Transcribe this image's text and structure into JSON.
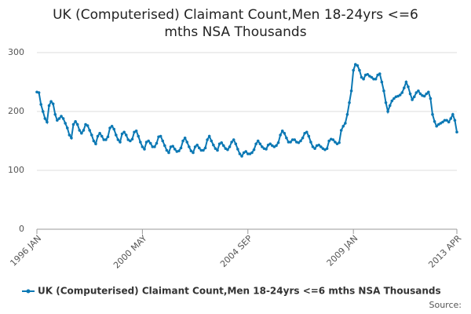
{
  "chart_data": {
    "type": "line",
    "title": "UK (Computerised) Claimant Count,Men 18-24yrs <=6 mths NSA Thousands",
    "source_label": "Source:",
    "categories": [
      "1996 JAN",
      null,
      null,
      null,
      null,
      null,
      null,
      null,
      null,
      null,
      null,
      null,
      null,
      null,
      null,
      null,
      null,
      null,
      null,
      null,
      null,
      null,
      null,
      null,
      null,
      null,
      null,
      null,
      null,
      null,
      null,
      null,
      null,
      null,
      null,
      null,
      null,
      null,
      null,
      null,
      null,
      null,
      null,
      null,
      null,
      null,
      null,
      null,
      null,
      null,
      null,
      null,
      "2000 MAY",
      null,
      null,
      null,
      null,
      null,
      null,
      null,
      null,
      null,
      null,
      null,
      null,
      null,
      null,
      null,
      null,
      null,
      null,
      null,
      null,
      null,
      null,
      null,
      null,
      null,
      null,
      null,
      null,
      null,
      null,
      null,
      null,
      null,
      null,
      null,
      null,
      null,
      null,
      null,
      null,
      null,
      null,
      null,
      null,
      null,
      null,
      null,
      null,
      null,
      null,
      null,
      "2004 SEP",
      null,
      null,
      null,
      null,
      null,
      null,
      null,
      null,
      null,
      null,
      null,
      null,
      null,
      null,
      null,
      null,
      null,
      null,
      null,
      null,
      null,
      null,
      null,
      null,
      null,
      null,
      null,
      null,
      null,
      null,
      null,
      null,
      null,
      null,
      null,
      null,
      null,
      null,
      null,
      null,
      null,
      null,
      null,
      null,
      null,
      null,
      null,
      null,
      null,
      null,
      null,
      "2009 JAN",
      null,
      null,
      null,
      null,
      null,
      null,
      null,
      null,
      null,
      null,
      null,
      null,
      null,
      null,
      null,
      null,
      null,
      null,
      null,
      null,
      null,
      null,
      null,
      null,
      null,
      null,
      null,
      null,
      null,
      null,
      null,
      null,
      null,
      null,
      null,
      null,
      null,
      null,
      null,
      null,
      null,
      null,
      null,
      null,
      null,
      null,
      null,
      null,
      null,
      null,
      "2013 APR"
    ],
    "series": [
      {
        "name": "UK (Computerised) Claimant Count,Men 18-24yrs <=6 mths NSA Thousands",
        "color": "#0b78b4",
        "values": [
          233,
          232,
          212,
          200,
          188,
          182,
          210,
          217,
          213,
          195,
          185,
          188,
          192,
          188,
          180,
          172,
          160,
          155,
          178,
          183,
          178,
          168,
          163,
          168,
          178,
          176,
          168,
          160,
          150,
          145,
          158,
          163,
          158,
          152,
          152,
          157,
          172,
          175,
          170,
          160,
          152,
          148,
          162,
          165,
          160,
          152,
          150,
          153,
          165,
          167,
          158,
          148,
          140,
          136,
          148,
          150,
          146,
          140,
          140,
          146,
          157,
          158,
          150,
          142,
          134,
          130,
          140,
          141,
          136,
          132,
          133,
          138,
          150,
          155,
          148,
          140,
          133,
          130,
          140,
          143,
          138,
          134,
          134,
          138,
          152,
          158,
          150,
          143,
          137,
          134,
          145,
          147,
          142,
          137,
          135,
          140,
          148,
          152,
          145,
          136,
          128,
          124,
          130,
          132,
          128,
          128,
          130,
          135,
          145,
          150,
          145,
          140,
          137,
          136,
          143,
          145,
          142,
          140,
          142,
          147,
          160,
          167,
          163,
          155,
          148,
          148,
          152,
          152,
          148,
          147,
          150,
          155,
          163,
          165,
          158,
          148,
          140,
          137,
          142,
          143,
          140,
          137,
          135,
          137,
          150,
          153,
          152,
          148,
          145,
          147,
          168,
          175,
          180,
          195,
          215,
          235,
          270,
          280,
          278,
          270,
          258,
          255,
          262,
          263,
          260,
          258,
          255,
          255,
          262,
          264,
          250,
          235,
          215,
          200,
          210,
          218,
          222,
          225,
          226,
          228,
          232,
          240,
          250,
          242,
          230,
          220,
          225,
          232,
          235,
          230,
          227,
          226,
          230,
          233,
          222,
          195,
          183,
          175,
          178,
          180,
          182,
          185,
          185,
          182,
          188,
          195,
          185,
          165
        ]
      }
    ],
    "ylim": [
      0,
      300
    ],
    "yticks": [
      0,
      100,
      200,
      300
    ],
    "grid": true
  }
}
